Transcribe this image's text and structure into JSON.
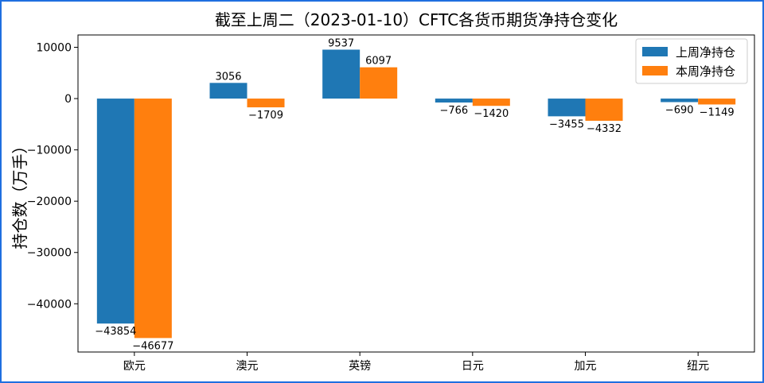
{
  "chart_data": {
    "type": "bar",
    "title": "截至上周二（2023-01-10）CFTC各货币期货净持仓变化",
    "xlabel": "",
    "ylabel": "持仓数（万手）",
    "categories": [
      "欧元",
      "澳元",
      "英镑",
      "日元",
      "加元",
      "纽元"
    ],
    "series": [
      {
        "name": "上周净持仓",
        "color": "#1f77b4",
        "values": [
          -43854,
          3056,
          9537,
          -766,
          -3455,
          -690
        ]
      },
      {
        "name": "本周净持仓",
        "color": "#ff7f0e",
        "values": [
          -46677,
          -1709,
          6097,
          -1420,
          -4332,
          -1149
        ]
      }
    ],
    "ylim": [
      -49400,
      12400
    ],
    "yticks": [
      -40000,
      -30000,
      -20000,
      -10000,
      0,
      10000
    ],
    "grid": false,
    "legend": "top-right"
  }
}
